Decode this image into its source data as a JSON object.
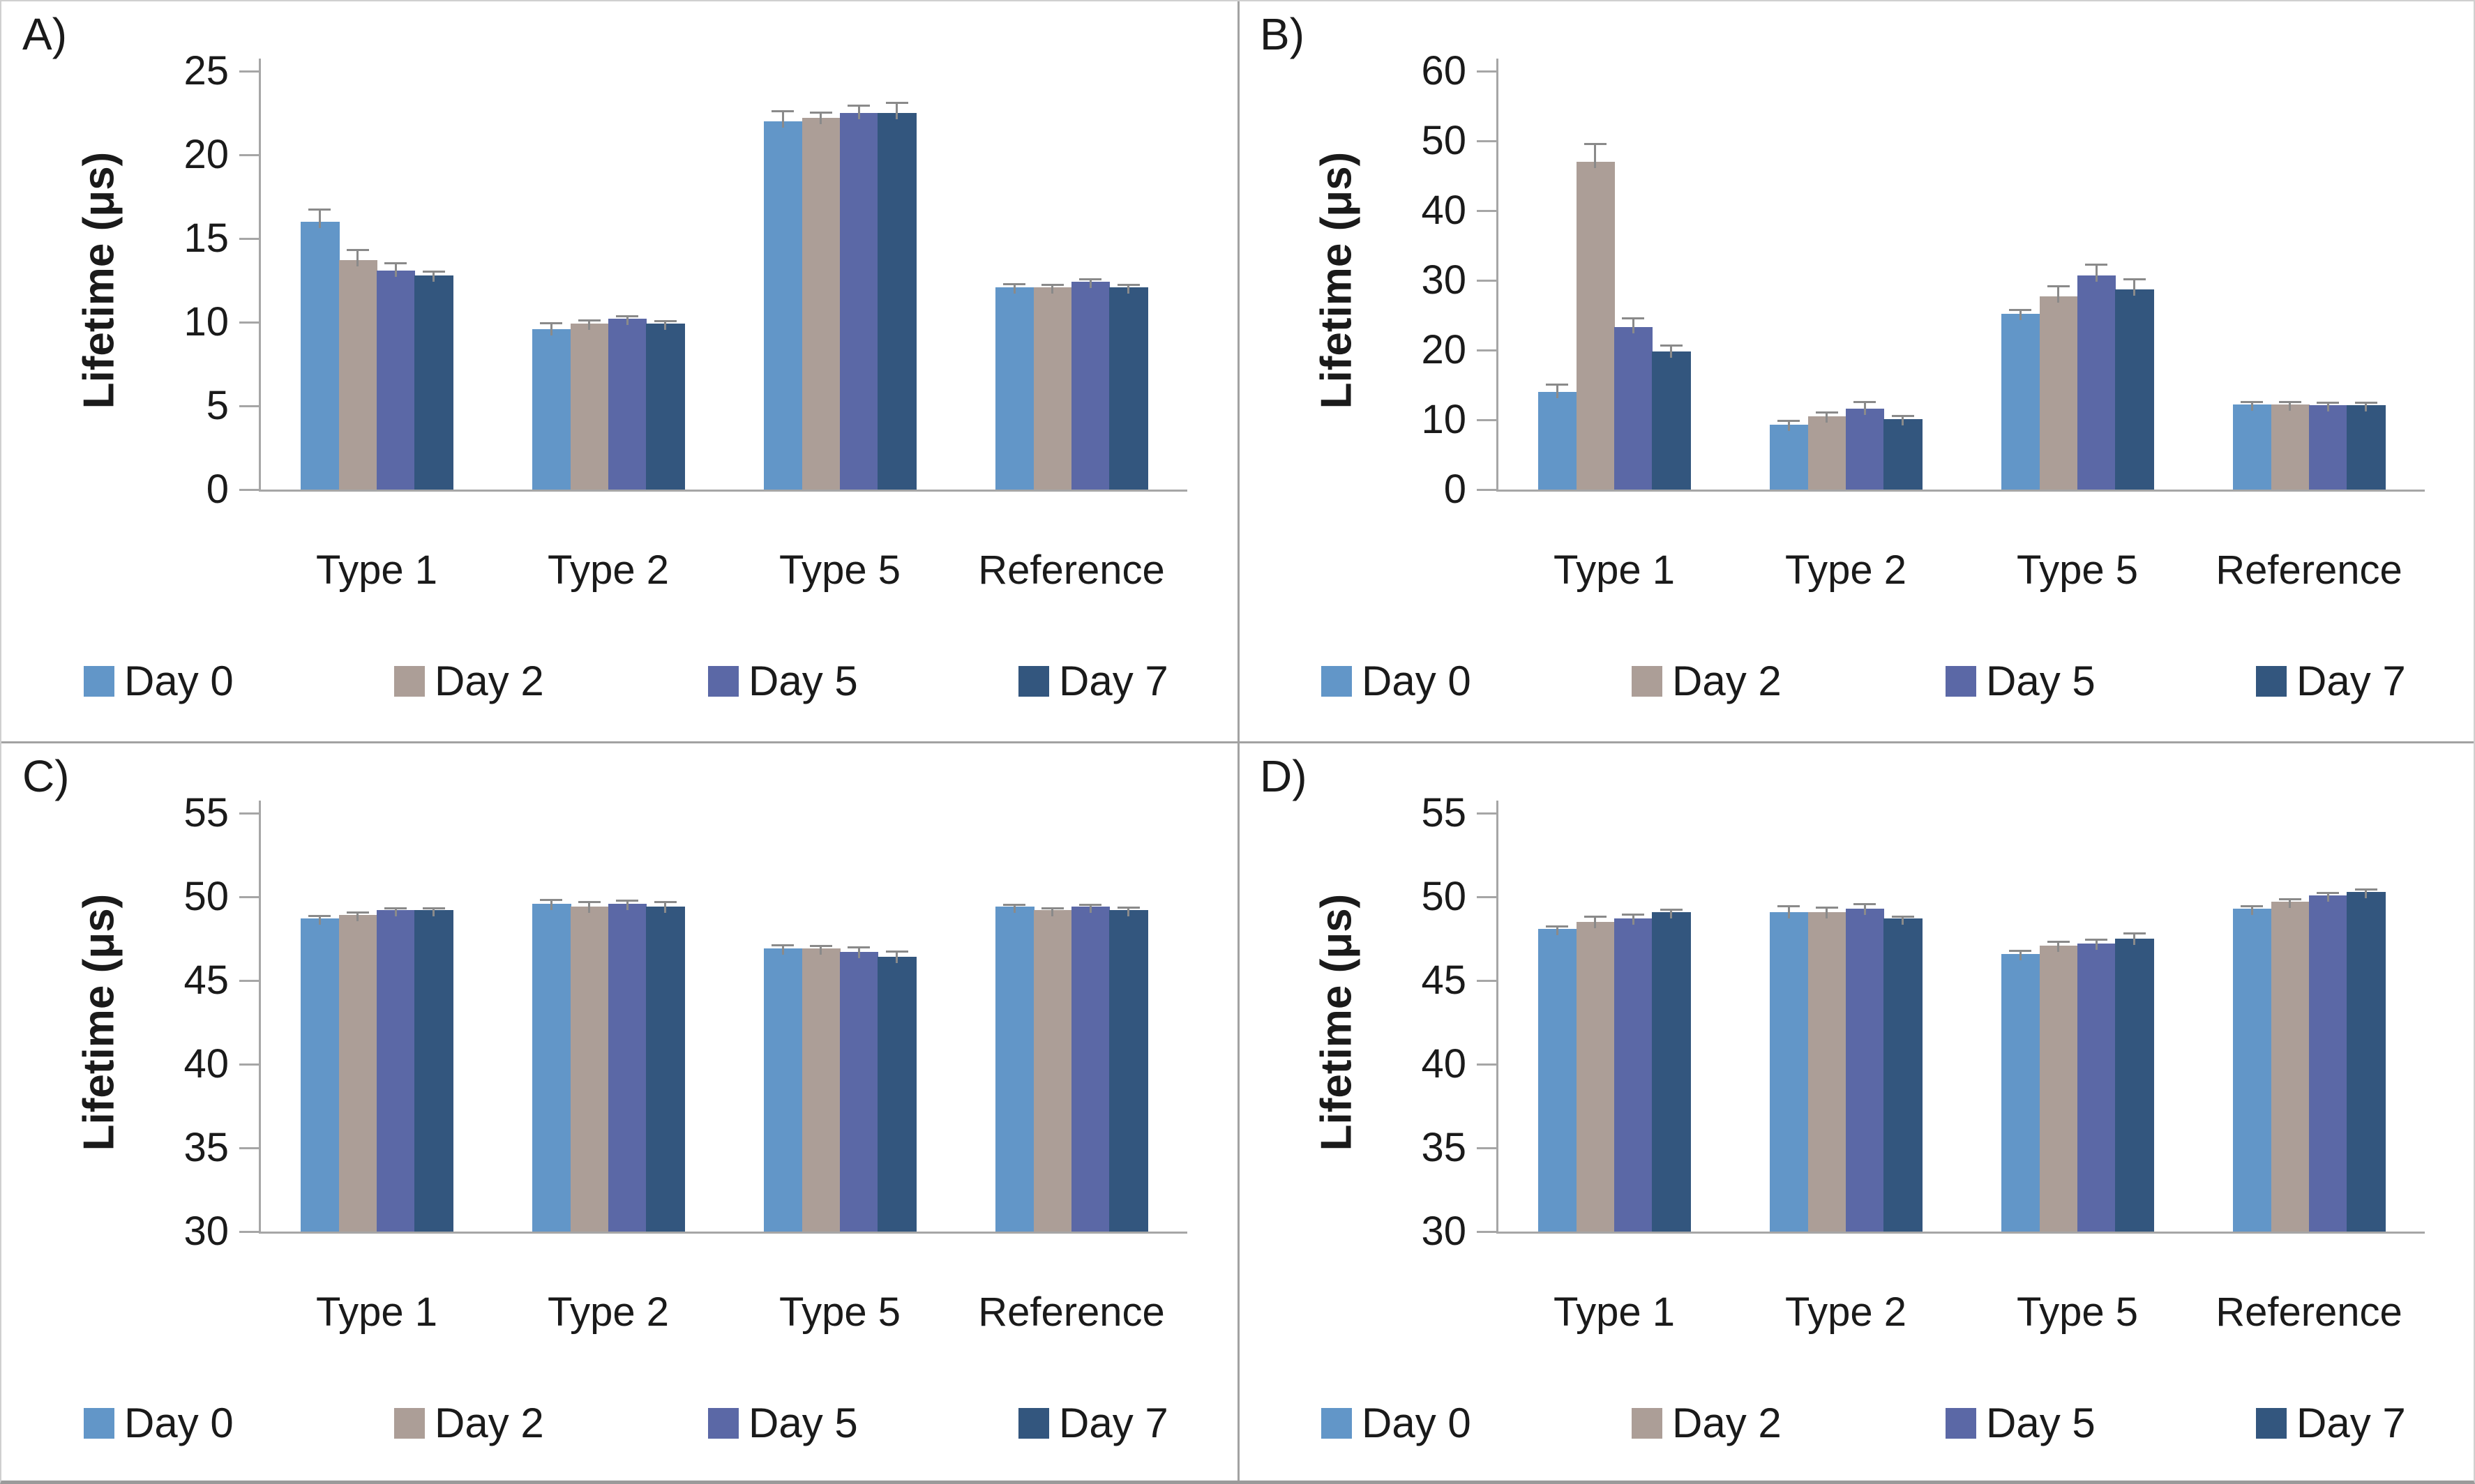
{
  "figure": {
    "background": "#ffffff",
    "divider_color": "#a2a2a2",
    "axis_color": "#a6a6a6",
    "error_bar_color": "#8a8a8a",
    "text_color": "#1a1a1a"
  },
  "legend": {
    "position": "bottom",
    "items": [
      {
        "label": "Day 0",
        "color": "#6296C8"
      },
      {
        "label": "Day 2",
        "color": "#AC9E97"
      },
      {
        "label": "Day 5",
        "color": "#5B68A6"
      },
      {
        "label": "Day 7",
        "color": "#33567E"
      }
    ]
  },
  "chart_data": [
    {
      "type": "bar",
      "panel": "A)",
      "ylabel": "Lifetime (μs)",
      "ylim": [
        0,
        25
      ],
      "yticks": [
        0,
        5,
        10,
        15,
        20,
        25
      ],
      "categories": [
        "Type 1",
        "Type 2",
        "Type 5",
        "Reference"
      ],
      "grid": false,
      "legend_position": "bottom",
      "series": [
        {
          "name": "Day 0",
          "color": "#6296C8",
          "values": [
            16.0,
            9.6,
            22.0,
            12.1
          ],
          "errors": [
            0.7,
            0.3,
            0.6,
            0.15
          ]
        },
        {
          "name": "Day 2",
          "color": "#AC9E97",
          "values": [
            13.7,
            9.9,
            22.2,
            12.1
          ],
          "errors": [
            0.6,
            0.2,
            0.3,
            0.1
          ]
        },
        {
          "name": "Day 5",
          "color": "#5B68A6",
          "values": [
            13.1,
            10.2,
            22.5,
            12.4
          ],
          "errors": [
            0.4,
            0.15,
            0.4,
            0.15
          ]
        },
        {
          "name": "Day 7",
          "color": "#33567E",
          "values": [
            12.8,
            9.9,
            22.5,
            12.1
          ],
          "errors": [
            0.2,
            0.15,
            0.6,
            0.1
          ]
        }
      ]
    },
    {
      "type": "bar",
      "panel": "B)",
      "ylabel": "Lifetime (μs)",
      "ylim": [
        0,
        60
      ],
      "yticks": [
        0,
        10,
        20,
        30,
        40,
        50,
        60
      ],
      "categories": [
        "Type 1",
        "Type 2",
        "Type 5",
        "Reference"
      ],
      "grid": false,
      "legend_position": "bottom",
      "series": [
        {
          "name": "Day 0",
          "color": "#6296C8",
          "values": [
            14.0,
            9.3,
            25.2,
            12.2
          ],
          "errors": [
            1.0,
            0.5,
            0.5,
            0.3
          ]
        },
        {
          "name": "Day 2",
          "color": "#AC9E97",
          "values": [
            47.0,
            10.5,
            27.7,
            12.2
          ],
          "errors": [
            2.5,
            0.5,
            1.4,
            0.3
          ]
        },
        {
          "name": "Day 5",
          "color": "#5B68A6",
          "values": [
            23.3,
            11.6,
            30.7,
            12.1
          ],
          "errors": [
            1.2,
            0.9,
            1.5,
            0.3
          ]
        },
        {
          "name": "Day 7",
          "color": "#33567E",
          "values": [
            19.8,
            10.1,
            28.7,
            12.1
          ],
          "errors": [
            0.8,
            0.4,
            1.4,
            0.3
          ]
        }
      ]
    },
    {
      "type": "bar",
      "panel": "C)",
      "ylabel": "Lifetime (μs)",
      "ylim": [
        30,
        55
      ],
      "yticks": [
        30,
        35,
        40,
        45,
        50,
        55
      ],
      "categories": [
        "Type 1",
        "Type 2",
        "Type 5",
        "Reference"
      ],
      "grid": false,
      "legend_position": "bottom",
      "series": [
        {
          "name": "Day 0",
          "color": "#6296C8",
          "values": [
            48.7,
            49.6,
            46.9,
            49.4
          ],
          "errors": [
            0.15,
            0.2,
            0.2,
            0.1
          ]
        },
        {
          "name": "Day 2",
          "color": "#AC9E97",
          "values": [
            48.9,
            49.4,
            46.9,
            49.2
          ],
          "errors": [
            0.15,
            0.25,
            0.15,
            0.1
          ]
        },
        {
          "name": "Day 5",
          "color": "#5B68A6",
          "values": [
            49.2,
            49.6,
            46.7,
            49.4
          ],
          "errors": [
            0.1,
            0.15,
            0.25,
            0.1
          ]
        },
        {
          "name": "Day 7",
          "color": "#33567E",
          "values": [
            49.2,
            49.4,
            46.4,
            49.2
          ],
          "errors": [
            0.1,
            0.25,
            0.3,
            0.15
          ]
        }
      ]
    },
    {
      "type": "bar",
      "panel": "D)",
      "ylabel": "Lifetime (μs)",
      "ylim": [
        30,
        55
      ],
      "yticks": [
        30,
        35,
        40,
        45,
        50,
        55
      ],
      "categories": [
        "Type 1",
        "Type 2",
        "Type 5",
        "Reference"
      ],
      "grid": false,
      "legend_position": "bottom",
      "series": [
        {
          "name": "Day 0",
          "color": "#6296C8",
          "values": [
            48.1,
            49.1,
            46.6,
            49.3
          ],
          "errors": [
            0.1,
            0.3,
            0.15,
            0.1
          ]
        },
        {
          "name": "Day 2",
          "color": "#AC9E97",
          "values": [
            48.5,
            49.1,
            47.1,
            49.7
          ],
          "errors": [
            0.3,
            0.25,
            0.2,
            0.15
          ]
        },
        {
          "name": "Day 5",
          "color": "#5B68A6",
          "values": [
            48.7,
            49.3,
            47.2,
            50.1
          ],
          "errors": [
            0.2,
            0.25,
            0.2,
            0.1
          ]
        },
        {
          "name": "Day 7",
          "color": "#33567E",
          "values": [
            49.1,
            48.7,
            47.5,
            50.3
          ],
          "errors": [
            0.1,
            0.1,
            0.3,
            0.1
          ]
        }
      ]
    }
  ]
}
